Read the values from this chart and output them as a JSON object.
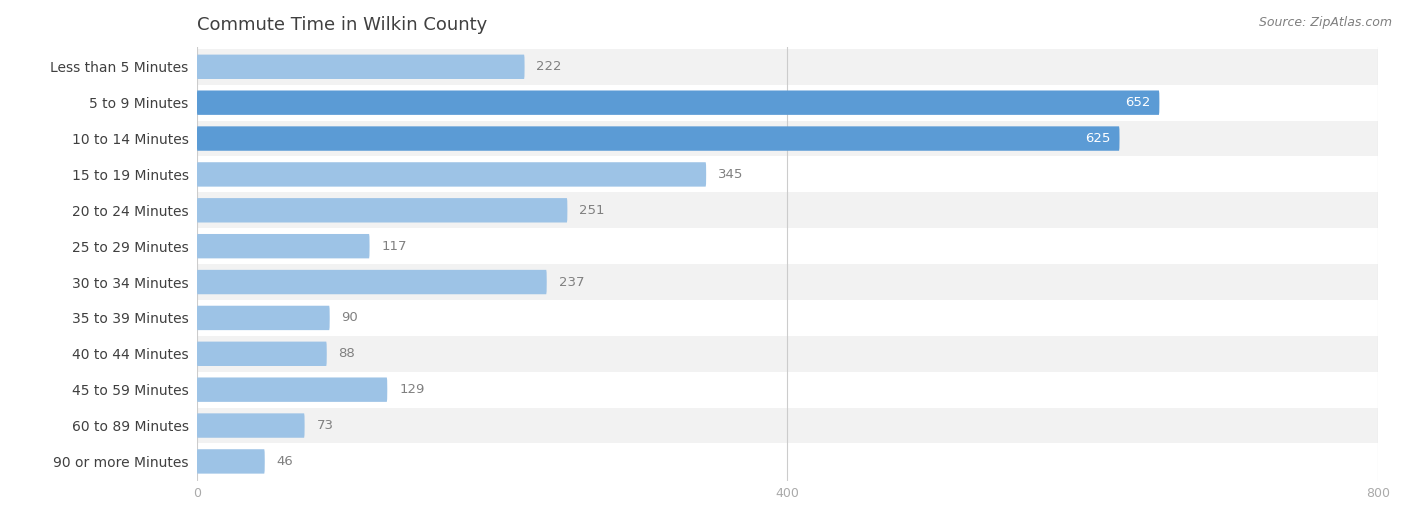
{
  "title": "Commute Time in Wilkin County",
  "source": "Source: ZipAtlas.com",
  "categories": [
    "Less than 5 Minutes",
    "5 to 9 Minutes",
    "10 to 14 Minutes",
    "15 to 19 Minutes",
    "20 to 24 Minutes",
    "25 to 29 Minutes",
    "30 to 34 Minutes",
    "35 to 39 Minutes",
    "40 to 44 Minutes",
    "45 to 59 Minutes",
    "60 to 89 Minutes",
    "90 or more Minutes"
  ],
  "values": [
    222,
    652,
    625,
    345,
    251,
    117,
    237,
    90,
    88,
    129,
    73,
    46
  ],
  "bar_color_dark": "#5b9bd5",
  "bar_color_light": "#9dc3e6",
  "bg_color": "#ffffff",
  "row_bg_even": "#f2f2f2",
  "row_bg_odd": "#ffffff",
  "title_color": "#404040",
  "label_color": "#404040",
  "value_color_inside": "#ffffff",
  "value_color_outside": "#808080",
  "source_color": "#808080",
  "xlim": [
    0,
    800
  ],
  "xticks": [
    0,
    400,
    800
  ],
  "title_fontsize": 13,
  "label_fontsize": 10,
  "value_fontsize": 9.5,
  "source_fontsize": 9,
  "dark_threshold": 600
}
